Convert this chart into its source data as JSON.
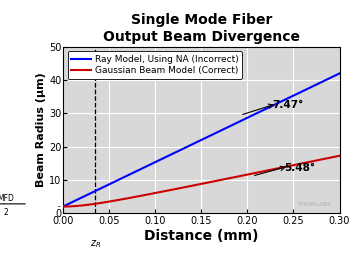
{
  "title_line1": "Single Mode Fiber",
  "title_line2": "Output Beam Divergence",
  "xlabel": "Distance (mm)",
  "ylabel": "Beam Radius (μm)",
  "xlim": [
    0.0,
    0.3
  ],
  "ylim": [
    0,
    50
  ],
  "xticks": [
    0.0,
    0.05,
    0.1,
    0.15,
    0.2,
    0.25,
    0.3
  ],
  "yticks": [
    0,
    10,
    20,
    30,
    40,
    50
  ],
  "mfd_over_2": 2.0,
  "zR": 0.035,
  "ray_endpoint": 42.0,
  "ray_color": "#0000FF",
  "gauss_color": "#CC0000",
  "legend_ray": "Ray Model, Using NA (Incorrect)",
  "legend_gauss": "Gaussian Beam Model (Correct)",
  "annotation_ray_angle": "7.47°",
  "annotation_gauss_angle": "5.48°",
  "watermark": "THORLABS",
  "bg_color": "#d8d8d8",
  "grid_color": "#ffffff",
  "title_fontsize": 10,
  "axis_label_fontsize": 8,
  "tick_fontsize": 7,
  "legend_fontsize": 6.5
}
